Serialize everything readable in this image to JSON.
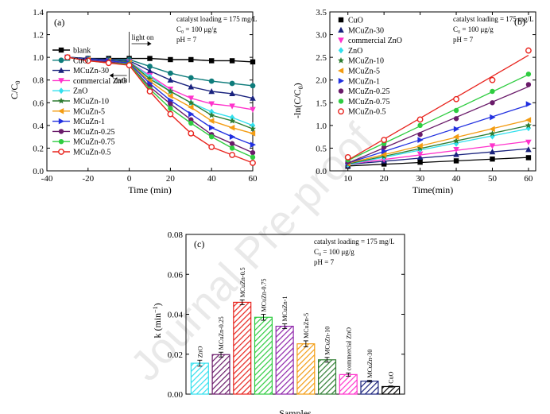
{
  "watermark": "Journal Pre-proof",
  "chart_data": [
    {
      "id": "a",
      "type": "line",
      "panel_label": "(a)",
      "xlabel": "Time (min)",
      "ylabel_main": "C/C",
      "ylabel_sub": "0",
      "xlim": [
        -40,
        60
      ],
      "ylim": [
        0.0,
        1.4
      ],
      "x_ticks": [
        -40,
        -20,
        0,
        20,
        40,
        60
      ],
      "x_tick_labels": [
        "-40",
        "-20",
        "0",
        "20",
        "40",
        "60"
      ],
      "y_ticks": [
        0.0,
        0.2,
        0.4,
        0.6,
        0.8,
        1.0,
        1.2,
        1.4
      ],
      "y_tick_labels": [
        "0.0",
        "0.2",
        "0.4",
        "0.6",
        "0.8",
        "1.0",
        "1.2",
        "1.4"
      ],
      "legend_position": "left",
      "conditions": [
        "catalyst loading = 175 mg/L",
        "C₀ = 100 μg/g",
        "pH = 7"
      ],
      "annotations": {
        "light_on": "light on",
        "dark": "dark"
      },
      "x": [
        -30,
        -20,
        -10,
        0,
        10,
        20,
        30,
        40,
        50,
        60
      ],
      "series": [
        {
          "name": "blank",
          "color": "#000000",
          "marker": "square",
          "values": [
            1.0,
            0.99,
            0.99,
            0.99,
            0.99,
            0.98,
            0.98,
            0.97,
            0.97,
            0.96
          ]
        },
        {
          "name": "CuO",
          "color": "#0e7c7b",
          "marker": "circle",
          "values": [
            1.0,
            0.99,
            0.98,
            0.98,
            0.92,
            0.86,
            0.82,
            0.79,
            0.77,
            0.75
          ]
        },
        {
          "name": "MCuZn-30",
          "color": "#1a237e",
          "marker": "triangle",
          "values": [
            1.0,
            0.99,
            0.98,
            0.97,
            0.88,
            0.8,
            0.74,
            0.7,
            0.68,
            0.64
          ]
        },
        {
          "name": "commercial ZnO",
          "color": "#ff33cc",
          "marker": "tri-down",
          "values": [
            1.0,
            0.98,
            0.97,
            0.96,
            0.84,
            0.72,
            0.64,
            0.59,
            0.57,
            0.54
          ]
        },
        {
          "name": "ZnO",
          "color": "#33e0ee",
          "marker": "diamond",
          "values": [
            1.0,
            0.98,
            0.97,
            0.96,
            0.83,
            0.7,
            0.6,
            0.52,
            0.47,
            0.4
          ]
        },
        {
          "name": "MCuZn-10",
          "color": "#2e7d32",
          "marker": "star",
          "values": [
            1.0,
            0.98,
            0.97,
            0.96,
            0.81,
            0.7,
            0.6,
            0.49,
            0.44,
            0.37
          ]
        },
        {
          "name": "MCuZn-5",
          "color": "#f39c12",
          "marker": "tri-left",
          "values": [
            1.0,
            0.98,
            0.97,
            0.95,
            0.79,
            0.66,
            0.56,
            0.44,
            0.38,
            0.33
          ]
        },
        {
          "name": "MCuZn-1",
          "color": "#2130e0",
          "marker": "tri-right",
          "values": [
            1.0,
            0.98,
            0.97,
            0.95,
            0.77,
            0.62,
            0.5,
            0.38,
            0.3,
            0.23
          ]
        },
        {
          "name": "MCuZn-0.25",
          "color": "#6a1b6a",
          "marker": "hexagon",
          "values": [
            1.0,
            0.97,
            0.96,
            0.94,
            0.74,
            0.59,
            0.45,
            0.32,
            0.24,
            0.16
          ]
        },
        {
          "name": "MCuZn-0.75",
          "color": "#2ecc40",
          "marker": "pentagon",
          "values": [
            1.0,
            0.97,
            0.95,
            0.94,
            0.72,
            0.55,
            0.42,
            0.3,
            0.2,
            0.12
          ]
        },
        {
          "name": "MCuZn-0.5",
          "color": "#e8231d",
          "marker": "open-circle",
          "values": [
            1.0,
            0.97,
            0.95,
            0.93,
            0.7,
            0.5,
            0.33,
            0.21,
            0.14,
            0.07
          ]
        }
      ]
    },
    {
      "id": "b",
      "type": "scatter",
      "panel_label": "(b)",
      "xlabel": "Time(min)",
      "ylabel_main": "-ln(C/C",
      "ylabel_sub": "0",
      "ylabel_close": ")",
      "xlim": [
        5,
        62
      ],
      "ylim": [
        0.0,
        3.5
      ],
      "x_ticks": [
        10,
        20,
        30,
        40,
        50,
        60
      ],
      "x_tick_labels": [
        "10",
        "20",
        "30",
        "40",
        "50",
        "60"
      ],
      "y_ticks": [
        0.0,
        0.5,
        1.0,
        1.5,
        2.0,
        2.5,
        3.0,
        3.5
      ],
      "y_tick_labels": [
        "0.0",
        "0.5",
        "1.0",
        "1.5",
        "2.0",
        "2.5",
        "3.0",
        "3.5"
      ],
      "legend_position": "top-left",
      "conditions": [
        "catalyst loading = 175 mg/L",
        "C₀ = 100 μg/g",
        "pH = 7"
      ],
      "x": [
        10,
        20,
        30,
        40,
        50,
        60
      ],
      "series": [
        {
          "name": "CuO",
          "color": "#000000",
          "marker": "square",
          "values": [
            0.1,
            0.15,
            0.19,
            0.22,
            0.26,
            0.29
          ]
        },
        {
          "name": "MCuZn-30",
          "color": "#1a237e",
          "marker": "triangle",
          "values": [
            0.12,
            0.22,
            0.3,
            0.36,
            0.42,
            0.47
          ]
        },
        {
          "name": "commercial ZnO",
          "color": "#ff33cc",
          "marker": "tri-down",
          "values": [
            0.13,
            0.25,
            0.37,
            0.47,
            0.55,
            0.63
          ]
        },
        {
          "name": "ZnO",
          "color": "#33e0ee",
          "marker": "diamond",
          "values": [
            0.14,
            0.3,
            0.47,
            0.6,
            0.76,
            0.94
          ]
        },
        {
          "name": "MCuZn-10",
          "color": "#2e7d32",
          "marker": "star",
          "values": [
            0.15,
            0.32,
            0.5,
            0.66,
            0.82,
            1.0
          ]
        },
        {
          "name": "MCuZn-5",
          "color": "#f39c12",
          "marker": "tri-left",
          "values": [
            0.16,
            0.36,
            0.55,
            0.75,
            0.92,
            1.12
          ]
        },
        {
          "name": "MCuZn-1",
          "color": "#2130e0",
          "marker": "tri-right",
          "values": [
            0.18,
            0.43,
            0.68,
            0.92,
            1.18,
            1.47
          ]
        },
        {
          "name": "MCuZn-0.25",
          "color": "#6a1b6a",
          "marker": "hexagon",
          "values": [
            0.2,
            0.52,
            0.8,
            1.15,
            1.5,
            1.9
          ]
        },
        {
          "name": "MCuZn-0.75",
          "color": "#2ecc40",
          "marker": "pentagon",
          "values": [
            0.24,
            0.6,
            1.0,
            1.33,
            1.75,
            2.13
          ]
        },
        {
          "name": "MCuZn-0.5",
          "color": "#e8231d",
          "marker": "open-circle",
          "values": [
            0.3,
            0.68,
            1.13,
            1.58,
            2.0,
            2.65
          ]
        }
      ]
    },
    {
      "id": "c",
      "type": "bar",
      "panel_label": "(c)",
      "xlabel": "Samples",
      "ylabel_main": "k (min",
      "ylabel_sup": "−1",
      "ylabel_close": ")",
      "ylim": [
        0.0,
        0.08
      ],
      "y_ticks": [
        0.0,
        0.02,
        0.04,
        0.06,
        0.08
      ],
      "y_tick_labels": [
        "0.00",
        "0.02",
        "0.04",
        "0.06",
        "0.08"
      ],
      "conditions": [
        "catalyst loading = 175 mg/L",
        "C₀ = 100 μg/g",
        "pH = 7"
      ],
      "categories": [
        "ZnO",
        "MCuZn-0.25",
        "MCuZn-0.5",
        "MCuZn-0.75",
        "MCuZn-1",
        "MCuZn-5",
        "MCuZn-10",
        "commercial ZnO",
        "MCuZn-30",
        "CuO"
      ],
      "values": [
        0.0155,
        0.0198,
        0.046,
        0.0385,
        0.034,
        0.0252,
        0.0172,
        0.0098,
        0.0065,
        0.0038
      ],
      "errors": [
        0.0015,
        0.0012,
        0.0012,
        0.0015,
        0.0012,
        0.0015,
        0.0012,
        0.0008,
        0.0004,
        0.0003
      ],
      "colors": [
        "#33e0ee",
        "#6a1b6a",
        "#e8231d",
        "#2ecc40",
        "#8e24aa",
        "#f39c12",
        "#2e7d32",
        "#ff33cc",
        "#1a237e",
        "#000000"
      ]
    }
  ]
}
